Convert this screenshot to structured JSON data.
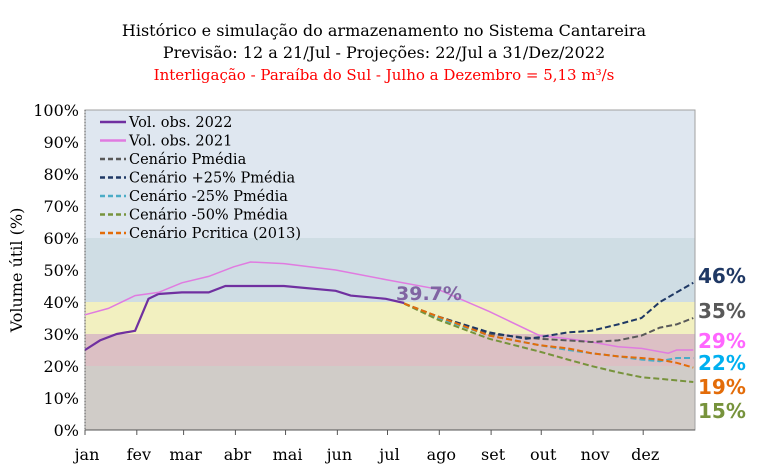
{
  "chart_data": {
    "type": "line",
    "title": "Histórico e simulação do armazenamento no Sistema Cantareira",
    "subtitle": "Previsão: 12 a 21/Jul - Projeções: 22/Jul a 31/Dez/2022",
    "subtitle2": "Interligação - Paraíba do Sul - Julho a Dezembro = 5,13 m³/s",
    "subtitle2_color": "#ff0000",
    "ylabel": "Volume útil (%)",
    "xlabel": "",
    "ylim": [
      0,
      100
    ],
    "yticks": [
      "0%",
      "10%",
      "20%",
      "30%",
      "40%",
      "50%",
      "60%",
      "70%",
      "80%",
      "90%",
      "100%"
    ],
    "xticks": [
      "jan",
      "fev",
      "mar",
      "abr",
      "mai",
      "jun",
      "jul",
      "ago",
      "set",
      "out",
      "nov",
      "dez"
    ],
    "x_unit": "day of year",
    "legend_position": "top-left",
    "bands": [
      {
        "from": 0,
        "to": 20,
        "color": "#d0ccc8"
      },
      {
        "from": 20,
        "to": 30,
        "color": "#dcc0c4"
      },
      {
        "from": 30,
        "to": 40,
        "color": "#f2f0c0"
      },
      {
        "from": 40,
        "to": 60,
        "color": "#cfdde4"
      },
      {
        "from": 60,
        "to": 100,
        "color": "#dfe7f0"
      }
    ],
    "annotation": {
      "text": "39.7%",
      "color": "#8064a2"
    },
    "series": [
      {
        "name": "Vol. obs. 2022",
        "color": "#7030a0",
        "dash": false,
        "width": 2.2,
        "x": [
          1,
          10,
          20,
          31,
          35,
          39,
          45,
          59,
          75,
          85,
          95,
          120,
          151,
          160,
          181,
          192
        ],
        "y": [
          25,
          28,
          30,
          31,
          36,
          41,
          42.5,
          43,
          43,
          45,
          45,
          45,
          43.5,
          42,
          41,
          39.7
        ]
      },
      {
        "name": "Vol. obs. 2021",
        "color": "#e07be0",
        "dash": false,
        "width": 1.5,
        "x": [
          1,
          15,
          31,
          45,
          59,
          75,
          90,
          100,
          120,
          151,
          181,
          212,
          243,
          273,
          290,
          304,
          320,
          334,
          350,
          355,
          365
        ],
        "y": [
          36,
          38,
          42,
          43,
          46,
          48,
          51,
          52.5,
          52,
          50,
          47,
          44,
          37,
          29.5,
          28.5,
          27.5,
          26,
          25.5,
          24,
          25,
          25
        ]
      },
      {
        "name": "Cenário Pmédia",
        "color": "#595959",
        "dash": true,
        "width": 2,
        "x": [
          192,
          212,
          243,
          273,
          290,
          304,
          320,
          334,
          345,
          355,
          365
        ],
        "y": [
          39.5,
          35,
          30,
          28.5,
          28,
          27.5,
          28,
          29.5,
          32,
          33,
          35
        ]
      },
      {
        "name": "Cenário +25% Pmédia",
        "color": "#1f3864",
        "dash": true,
        "width": 2,
        "x": [
          192,
          212,
          243,
          265,
          273,
          290,
          304,
          320,
          334,
          345,
          355,
          365
        ],
        "y": [
          39.5,
          35.5,
          30.5,
          28.5,
          29,
          30.5,
          31,
          33,
          35,
          40,
          43,
          46
        ]
      },
      {
        "name": "Cenário -25% Pmédia",
        "color": "#4bacc6",
        "dash": true,
        "width": 2,
        "x": [
          192,
          212,
          243,
          273,
          290,
          304,
          320,
          334,
          345,
          355,
          365
        ],
        "y": [
          39.5,
          35,
          29.5,
          26.5,
          25,
          24,
          23,
          22,
          21.5,
          22.5,
          22.5
        ]
      },
      {
        "name": "Cenário -50% Pmédia",
        "color": "#77933c",
        "dash": true,
        "width": 2,
        "x": [
          192,
          212,
          243,
          273,
          290,
          304,
          320,
          334,
          345,
          355,
          365
        ],
        "y": [
          39.5,
          34.5,
          28.5,
          24.5,
          22,
          20,
          18,
          16.5,
          16,
          15.5,
          15
        ]
      },
      {
        "name": "Cenário Pcritica (2013)",
        "color": "#e36c09",
        "dash": true,
        "width": 2,
        "x": [
          192,
          212,
          243,
          273,
          290,
          304,
          320,
          334,
          345,
          355,
          365
        ],
        "y": [
          39.5,
          35.5,
          29.5,
          26.5,
          25.5,
          24,
          23,
          22.5,
          22,
          21,
          19.5
        ]
      }
    ],
    "end_labels": [
      {
        "text": "46%",
        "color": "#1f3864",
        "value": 46
      },
      {
        "text": "35%",
        "color": "#595959",
        "value": 35
      },
      {
        "text": "29%",
        "color": "#ff66ff",
        "value": 29
      },
      {
        "text": "22%",
        "color": "#00b0f0",
        "value": 22
      },
      {
        "text": "19%",
        "color": "#e36c09",
        "value": 19
      },
      {
        "text": "15%",
        "color": "#77933c",
        "value": 15
      }
    ]
  }
}
